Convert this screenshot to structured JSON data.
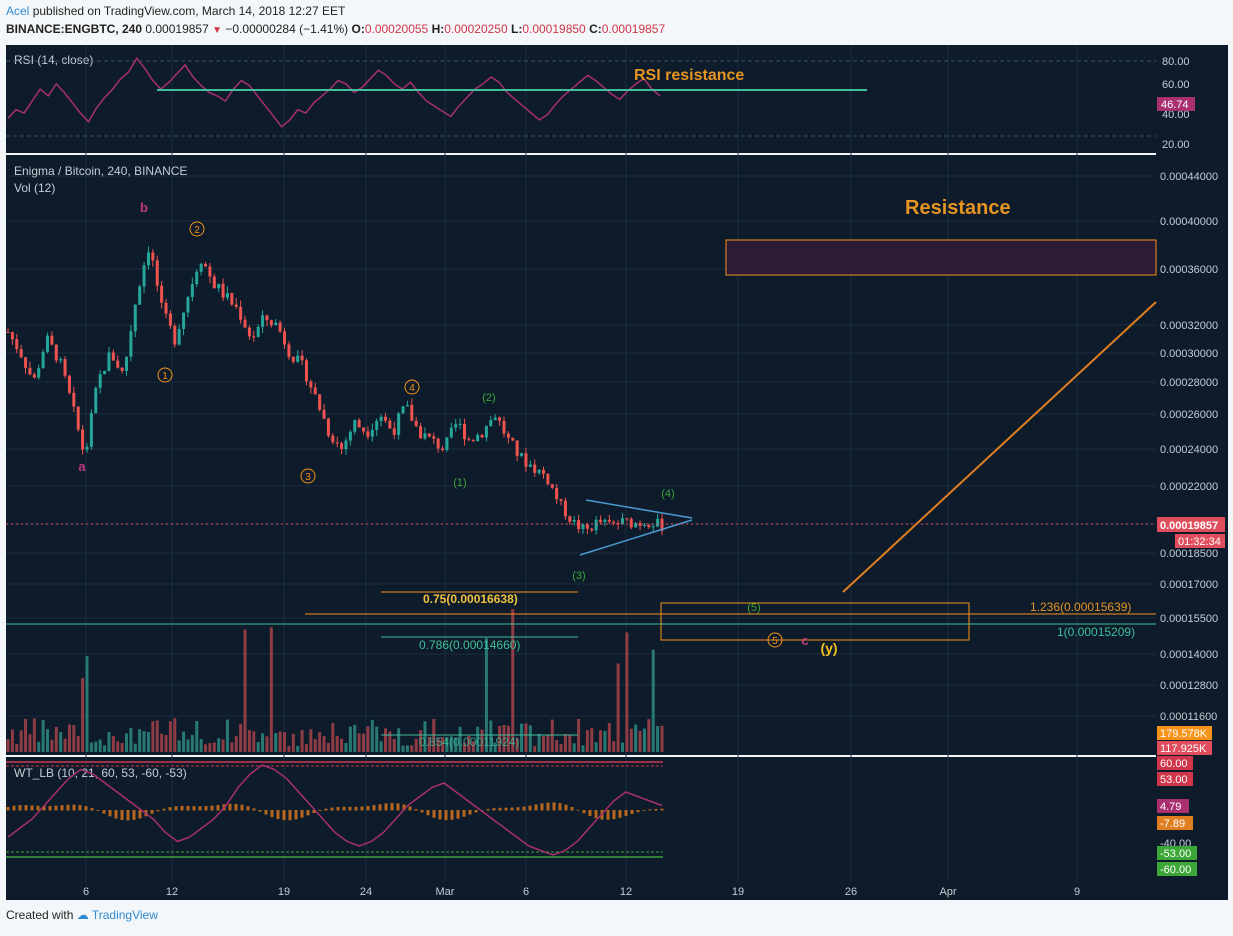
{
  "header": {
    "author": "Acel",
    "published_text": "published on TradingView.com, March 14, 2018 12:27 EET",
    "symbol": "BINANCE:ENGBTC, 240",
    "last": "0.00019857",
    "change": "−0.00000284 (−1.41%)",
    "o_label": "O:",
    "o_value": "0.00020055",
    "h_label": "H:",
    "h_value": "0.00020250",
    "l_label": "L:",
    "l_value": "0.00019850",
    "c_label": "C:",
    "c_value": "0.00019857"
  },
  "footer": {
    "created_with": "Created with",
    "brand": "TradingView"
  },
  "colors": {
    "background": "#ffffff",
    "panel_bg": "#0d1b2a",
    "up": "#26a69a",
    "down": "#ef5350",
    "orange": "#f7931a",
    "wave_green": "#3ca637",
    "purple": "#b03a7a",
    "rsi_line": "#a8306f",
    "resistance_text": "#e69422",
    "last_price": "#e04e5e"
  },
  "chart_data": [
    {
      "type": "line",
      "panel": "rsi",
      "label": "RSI (14, close)",
      "ylim": [
        20,
        80
      ],
      "y_ticks": [
        "80.00",
        "60.00",
        "40.00",
        "20.00"
      ],
      "current_value": "46.74",
      "resistance_level": 57,
      "annotation": "RSI resistance",
      "series": [
        {
          "values": [
            35,
            40,
            38,
            45,
            52,
            48,
            55,
            50,
            44,
            38,
            33,
            41,
            47,
            52,
            58,
            62,
            70,
            64,
            57,
            52,
            56,
            61,
            66,
            59,
            54,
            50,
            48,
            45,
            52,
            57,
            54,
            48,
            42,
            36,
            30,
            34,
            40,
            38,
            44,
            48,
            52,
            57,
            55,
            50,
            53,
            58,
            63,
            60,
            55,
            52,
            56,
            50,
            45,
            42,
            39,
            36,
            42,
            47,
            52,
            55,
            59,
            56,
            50,
            46,
            42,
            38,
            34,
            37,
            43,
            48,
            52,
            56,
            60,
            57,
            53,
            49,
            46,
            51,
            55,
            58,
            52,
            48
          ]
        }
      ]
    },
    {
      "type": "candlestick",
      "panel": "price",
      "title": "Enigma / Bitcoin, 240, BINANCE",
      "volume_label": "Vol (12)",
      "y_ticks": [
        "0.00044000",
        "0.00040000",
        "0.00036000",
        "0.00032000",
        "0.00030000",
        "0.00028000",
        "0.00026000",
        "0.00024000",
        "0.00022000",
        "0.00019857",
        "0.00018500",
        "0.00017000",
        "0.00015500",
        "0.00014000",
        "0.00012800",
        "0.00011600"
      ],
      "x_ticks": [
        "6",
        "12",
        "19",
        "24",
        "Mar",
        "6",
        "12",
        "19",
        "26",
        "Apr",
        "9"
      ],
      "last_price": "0.00019857",
      "countdown": "01:32:34",
      "volume_values": [
        "179.578K",
        "117.925K"
      ],
      "close_path": [
        0.000315,
        0.0003,
        0.00028,
        0.00031,
        0.000295,
        0.000265,
        0.000235,
        0.00028,
        0.0003,
        0.000285,
        0.00034,
        0.00038,
        0.00033,
        0.00031,
        0.00034,
        0.00037,
        0.00035,
        0.00034,
        0.00033,
        0.00031,
        0.000325,
        0.00032,
        0.0003,
        0.00029,
        0.00027,
        0.00025,
        0.00024,
        0.000255,
        0.00025,
        0.00026,
        0.00025,
        0.000265,
        0.00025,
        0.000245,
        0.00024,
        0.000255,
        0.000245,
        0.00025,
        0.00026,
        0.000245,
        0.000235,
        0.00023,
        0.000225,
        0.00021,
        0.0002,
        0.000195,
        0.0002,
        0.000198,
        0.0002,
        0.000199,
        0.0002,
        0.000198
      ],
      "annotations": {
        "resistance_label": "Resistance",
        "fib_075": "0.75(0.00016638)",
        "fib_0786": "0.786(0.00014660)",
        "fib_0854": "0.854(0.00011924)",
        "fib_1236": "1.236(0.00015639)",
        "fib_1": "1(0.00015209)",
        "wave_labels_orange": [
          "1",
          "2",
          "3",
          "4",
          "5"
        ],
        "wave_labels_green": [
          "(1)",
          "(2)",
          "(3)",
          "(4)",
          "(5)"
        ],
        "abc_labels": [
          "a",
          "b",
          "c"
        ],
        "y_label": "(y)"
      }
    },
    {
      "type": "line",
      "panel": "wt",
      "label": "WT_LB (10, 21, 60, 53, -60, -53)",
      "y_ticks": [
        "-40.00"
      ],
      "levels": {
        "ob1": "60.00",
        "ob2": "53.00",
        "os1": "-53.00",
        "os2": "-60.00"
      },
      "current_values": [
        "4.79",
        "-7.89"
      ],
      "series": [
        {
          "values": [
            -30,
            -20,
            -10,
            5,
            20,
            35,
            45,
            40,
            30,
            20,
            10,
            0,
            -10,
            -25,
            -35,
            -30,
            -20,
            -10,
            5,
            25,
            40,
            50,
            45,
            35,
            20,
            5,
            -10,
            -25,
            -35,
            -40,
            -35,
            -25,
            -10,
            5,
            15,
            25,
            30,
            20,
            10,
            0,
            -10,
            -20,
            -30,
            -40,
            -45,
            -50,
            -45,
            -35,
            -20,
            -5,
            10,
            20,
            15,
            10,
            5
          ]
        }
      ]
    }
  ]
}
